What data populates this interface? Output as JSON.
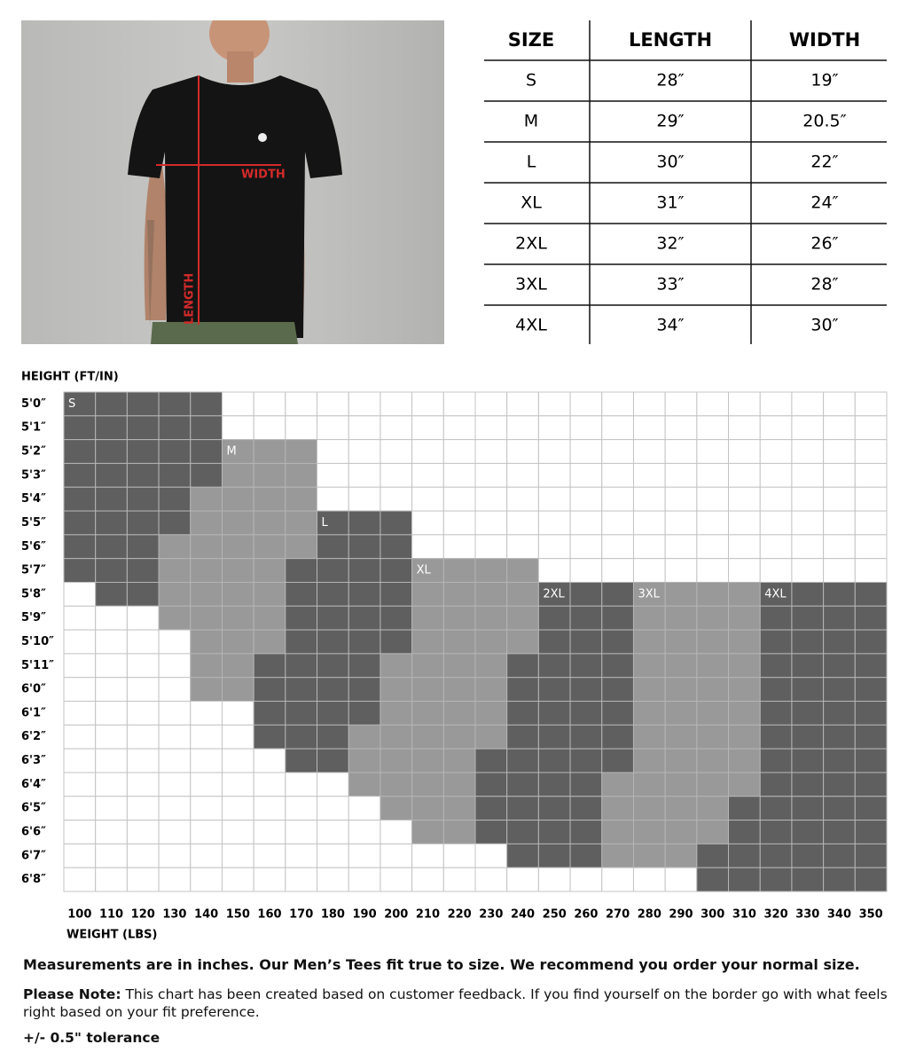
{
  "photo": {
    "width_label": "WIDTH",
    "length_label": "LENGTH"
  },
  "size_table": {
    "headers": [
      "SIZE",
      "LENGTH",
      "WIDTH"
    ],
    "rows": [
      [
        "S",
        "28″",
        "19″"
      ],
      [
        "M",
        "29″",
        "20.5″"
      ],
      [
        "L",
        "30″",
        "22″"
      ],
      [
        "XL",
        "31″",
        "24″"
      ],
      [
        "2XL",
        "32″",
        "26″"
      ],
      [
        "3XL",
        "33″",
        "28″"
      ],
      [
        "4XL",
        "34″",
        "30″"
      ]
    ]
  },
  "fit_chart": {
    "y_title": "HEIGHT (FT/IN)",
    "x_title": "WEIGHT (LBS)",
    "heights": [
      "5'0″",
      "5'1″",
      "5'2″",
      "5'3″",
      "5'4″",
      "5'5″",
      "5'6″",
      "5'7″",
      "5'8″",
      "5'9″",
      "5'10″",
      "5'11″",
      "6'0″",
      "6'1″",
      "6'2″",
      "6'3″",
      "6'4″",
      "6'5″",
      "6'6″",
      "6'7″",
      "6'8″"
    ],
    "weights": [
      100,
      110,
      120,
      130,
      140,
      150,
      160,
      170,
      180,
      190,
      200,
      210,
      220,
      230,
      240,
      250,
      260,
      270,
      280,
      290,
      300,
      310,
      320,
      330,
      340,
      350
    ],
    "sizes": [
      {
        "name": "S",
        "color": "#5f5f5f",
        "cells": [
          [
            0,
            0,
            4
          ],
          [
            1,
            0,
            4
          ],
          [
            2,
            0,
            4
          ],
          [
            3,
            0,
            4
          ],
          [
            4,
            0,
            3
          ],
          [
            5,
            0,
            3
          ],
          [
            6,
            0,
            2
          ],
          [
            7,
            0,
            2
          ],
          [
            8,
            1,
            2
          ]
        ]
      },
      {
        "name": "M",
        "color": "#999999",
        "cells": [
          [
            2,
            5,
            7
          ],
          [
            3,
            5,
            7
          ],
          [
            4,
            4,
            7
          ],
          [
            5,
            4,
            7
          ],
          [
            6,
            3,
            7
          ],
          [
            7,
            3,
            6
          ],
          [
            8,
            3,
            6
          ],
          [
            9,
            3,
            6
          ],
          [
            10,
            4,
            6
          ],
          [
            11,
            4,
            5
          ],
          [
            12,
            4,
            5
          ]
        ]
      },
      {
        "name": "L",
        "color": "#5f5f5f",
        "cells": [
          [
            5,
            8,
            10
          ],
          [
            6,
            8,
            10
          ],
          [
            7,
            7,
            10
          ],
          [
            8,
            7,
            10
          ],
          [
            9,
            7,
            10
          ],
          [
            10,
            7,
            10
          ],
          [
            11,
            6,
            9
          ],
          [
            12,
            6,
            9
          ],
          [
            13,
            6,
            9
          ],
          [
            14,
            6,
            8
          ],
          [
            15,
            7,
            8
          ]
        ]
      },
      {
        "name": "XL",
        "color": "#999999",
        "cells": [
          [
            7,
            11,
            14
          ],
          [
            8,
            11,
            14
          ],
          [
            9,
            11,
            14
          ],
          [
            10,
            11,
            14
          ],
          [
            11,
            10,
            13
          ],
          [
            12,
            10,
            13
          ],
          [
            13,
            10,
            13
          ],
          [
            14,
            9,
            13
          ],
          [
            15,
            9,
            12
          ],
          [
            16,
            9,
            12
          ],
          [
            17,
            10,
            12
          ],
          [
            18,
            11,
            12
          ]
        ]
      },
      {
        "name": "2XL",
        "color": "#5f5f5f",
        "cells": [
          [
            8,
            15,
            17
          ],
          [
            9,
            15,
            17
          ],
          [
            10,
            15,
            17
          ],
          [
            11,
            14,
            17
          ],
          [
            12,
            14,
            17
          ],
          [
            13,
            14,
            17
          ],
          [
            14,
            14,
            17
          ],
          [
            15,
            13,
            17
          ],
          [
            16,
            13,
            16
          ],
          [
            17,
            13,
            16
          ],
          [
            18,
            13,
            16
          ],
          [
            19,
            14,
            16
          ]
        ]
      },
      {
        "name": "3XL",
        "color": "#999999",
        "cells": [
          [
            8,
            18,
            21
          ],
          [
            9,
            18,
            21
          ],
          [
            10,
            18,
            21
          ],
          [
            11,
            18,
            21
          ],
          [
            12,
            18,
            21
          ],
          [
            13,
            18,
            21
          ],
          [
            14,
            18,
            21
          ],
          [
            15,
            18,
            21
          ],
          [
            16,
            17,
            21
          ],
          [
            17,
            17,
            20
          ],
          [
            18,
            17,
            20
          ],
          [
            19,
            17,
            19
          ]
        ]
      },
      {
        "name": "4XL",
        "color": "#5f5f5f",
        "cells": [
          [
            8,
            22,
            25
          ],
          [
            9,
            22,
            25
          ],
          [
            10,
            22,
            25
          ],
          [
            11,
            22,
            25
          ],
          [
            12,
            22,
            25
          ],
          [
            13,
            22,
            25
          ],
          [
            14,
            22,
            25
          ],
          [
            15,
            22,
            25
          ],
          [
            16,
            22,
            25
          ],
          [
            17,
            21,
            25
          ],
          [
            18,
            21,
            25
          ],
          [
            19,
            20,
            25
          ],
          [
            20,
            20,
            25
          ]
        ]
      }
    ]
  },
  "notes": {
    "fit": "Measurements are in inches. Our Men’s Tees fit true to size. We recommend you order your normal size.",
    "please_note_label": "Please Note:",
    "please_note_text": " This chart has been created based on customer feedback. If you find yourself on the border go with what feels right based on your fit preference.",
    "tolerance": "+/- 0.5\" tolerance"
  }
}
